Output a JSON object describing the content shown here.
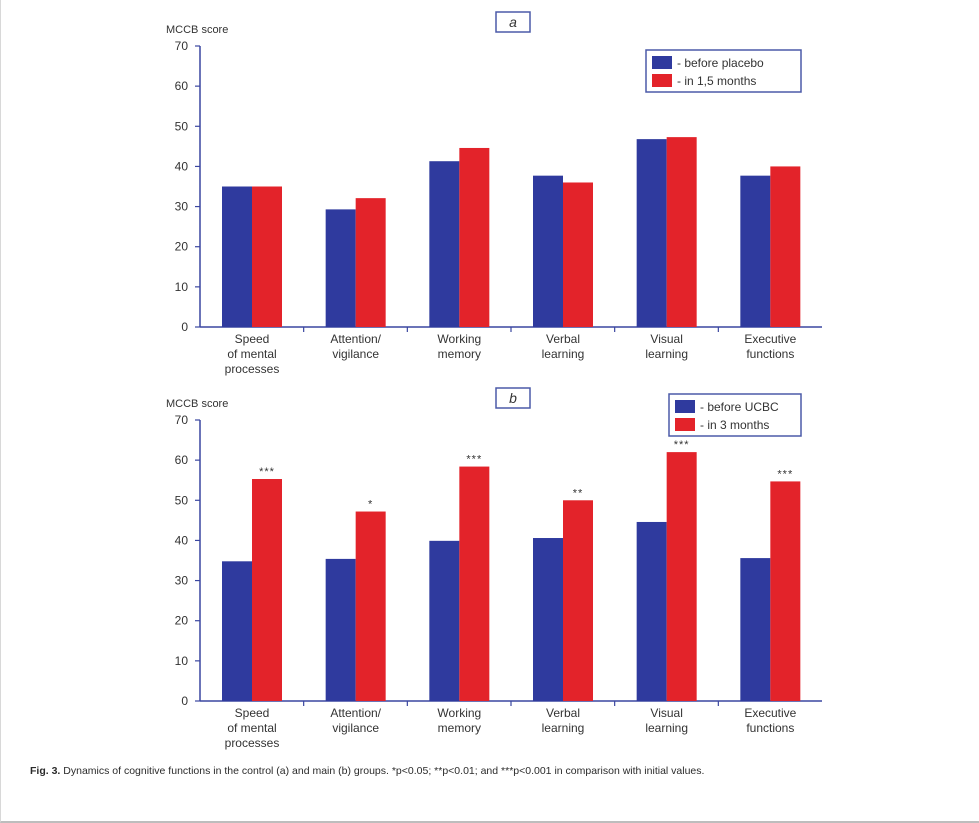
{
  "chart_data": [
    {
      "type": "bar",
      "panel_label": "a",
      "ylabel": "MCCB score",
      "ylim": [
        0,
        70
      ],
      "yticks": [
        0,
        10,
        20,
        30,
        40,
        50,
        60,
        70
      ],
      "categories": [
        [
          "Speed",
          "of mental",
          "processes"
        ],
        [
          "Attention/",
          "vigilance"
        ],
        [
          "Working",
          "memory"
        ],
        [
          "Verbal",
          "learning"
        ],
        [
          "Visual",
          "learning"
        ],
        [
          "Executive",
          "functions"
        ]
      ],
      "series": [
        {
          "name": "- before placebo",
          "color": "#2f3a9e",
          "values": [
            35,
            29.3,
            41.3,
            37.7,
            46.8,
            37.7
          ]
        },
        {
          "name": "- in 1,5 months",
          "color": "#e3232a",
          "values": [
            35,
            32.1,
            44.6,
            36,
            47.3,
            40
          ]
        }
      ],
      "annotations": [
        "",
        "",
        "",
        "",
        "",
        ""
      ],
      "legend": "top-right",
      "grid": false
    },
    {
      "type": "bar",
      "panel_label": "b",
      "ylabel": "MCCB score",
      "ylim": [
        0,
        70
      ],
      "yticks": [
        0,
        10,
        20,
        30,
        40,
        50,
        60,
        70
      ],
      "categories": [
        [
          "Speed",
          "of mental",
          "processes"
        ],
        [
          "Attention/",
          "vigilance"
        ],
        [
          "Working",
          "memory"
        ],
        [
          "Verbal",
          "learning"
        ],
        [
          "Visual",
          "learning"
        ],
        [
          "Executive",
          "functions"
        ]
      ],
      "series": [
        {
          "name": "- before UCBC",
          "color": "#2f3a9e",
          "values": [
            34.8,
            35.4,
            39.9,
            40.6,
            44.6,
            35.6
          ]
        },
        {
          "name": "- in 3 months",
          "color": "#e3232a",
          "values": [
            55.3,
            47.2,
            58.4,
            50,
            62,
            54.7
          ]
        }
      ],
      "annotations": [
        "***",
        "*",
        "***",
        "**",
        "***",
        "***"
      ],
      "legend": "top-right",
      "grid": false
    }
  ],
  "caption": {
    "fig_label": "Fig. 3.",
    "text": "Dynamics of cognitive functions in the control (a) and main (b) groups. *p<0.05; **p<0.01; and ***p<0.001 in comparison with initial values."
  }
}
